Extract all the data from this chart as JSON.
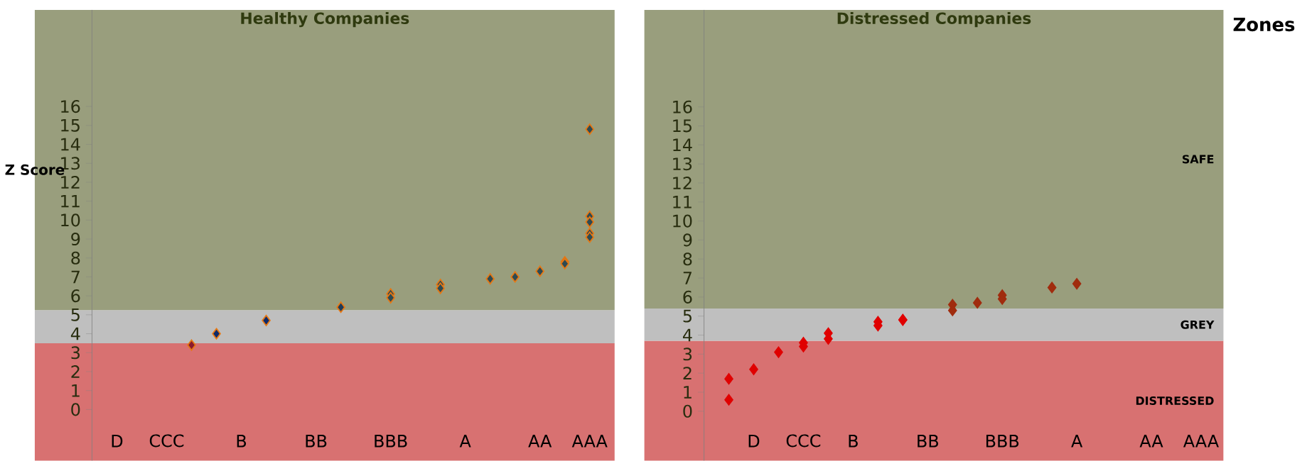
{
  "chart_data": [
    {
      "type": "scatter",
      "title": "Healthy Companies",
      "ylabel": "Z Score",
      "marker": "diamond",
      "categories": [
        null,
        "D",
        null,
        "CCC",
        null,
        null,
        "B",
        null,
        null,
        "BB",
        null,
        null,
        "BBB",
        null,
        null,
        "A",
        null,
        null,
        "AA",
        null,
        "AAA"
      ],
      "ylim": [
        -2.7,
        21.1
      ],
      "yticks": [
        0,
        1,
        2,
        3,
        4,
        5,
        6,
        7,
        8,
        9,
        10,
        11,
        12,
        13,
        14,
        15,
        16
      ],
      "bands": [
        {
          "axis": "y",
          "from": -2.7,
          "to": 3.5,
          "color": "#d87171"
        },
        {
          "axis": "y",
          "from": 3.5,
          "to": 5.25,
          "color": "#bfbfbf"
        },
        {
          "axis": "y",
          "from": 5.25,
          "to": 21.1,
          "color": "#999e7d"
        }
      ],
      "series": [
        {
          "values": [
            null,
            null,
            null,
            null,
            3.4,
            4.0,
            null,
            4.7,
            null,
            null,
            5.4,
            null,
            6.1,
            null,
            6.6,
            null,
            6.9,
            7.0,
            7.3,
            7.8,
            14.8
          ],
          "colors": [
            null,
            null,
            null,
            null,
            "#8b1a2e",
            "#0d2a6b",
            null,
            "#0d2a6b",
            null,
            null,
            "#1f3d5a",
            null,
            "#2e4a52",
            null,
            "#2e4a52",
            null,
            "#2e4a52",
            "#2e4a52",
            "#2e4a52",
            "#2e4a52",
            "#2e4a52"
          ]
        },
        {
          "color": "#2e4a52",
          "values": [
            null,
            null,
            null,
            null,
            null,
            null,
            null,
            null,
            null,
            null,
            null,
            null,
            5.9,
            null,
            6.4,
            null,
            null,
            null,
            null,
            7.7,
            10.2
          ]
        },
        {
          "color": "#2e4a52",
          "values": [
            null,
            null,
            null,
            null,
            null,
            null,
            null,
            null,
            null,
            null,
            null,
            null,
            null,
            null,
            null,
            null,
            null,
            null,
            null,
            null,
            9.9
          ]
        },
        {
          "color": "#2e4a52",
          "values": [
            null,
            null,
            null,
            null,
            null,
            null,
            null,
            null,
            null,
            null,
            null,
            null,
            null,
            null,
            null,
            null,
            null,
            null,
            null,
            null,
            9.3
          ]
        },
        {
          "color": "#2e4a52",
          "values": [
            null,
            null,
            null,
            null,
            null,
            null,
            null,
            null,
            null,
            null,
            null,
            null,
            null,
            null,
            null,
            null,
            null,
            null,
            null,
            null,
            9.1
          ]
        }
      ]
    },
    {
      "type": "scatter",
      "title": "Distressed Companies",
      "marker": "diamond",
      "categories": [
        null,
        null,
        "D",
        null,
        "CCC",
        null,
        "B",
        null,
        null,
        "BB",
        null,
        null,
        "BBB",
        null,
        null,
        "A",
        null,
        null,
        "AA",
        null,
        "AAA"
      ],
      "ylim": [
        -2.6,
        21.1
      ],
      "yticks": [
        0,
        1,
        2,
        3,
        4,
        5,
        6,
        7,
        8,
        9,
        10,
        11,
        12,
        13,
        14,
        15,
        16
      ],
      "bands": [
        {
          "axis": "y",
          "from": -2.6,
          "to": 3.7,
          "color": "#d87171",
          "label": "DISTRESSED"
        },
        {
          "axis": "y",
          "from": 3.7,
          "to": 5.4,
          "color": "#bfbfbf",
          "label": "GREY"
        },
        {
          "axis": "y",
          "from": 5.4,
          "to": 21.1,
          "color": "#999e7d",
          "label": "SAFE"
        }
      ],
      "annotations": [
        "Zones"
      ],
      "series": [
        {
          "values": [
            null,
            1.7,
            2.2,
            3.1,
            3.6,
            4.1,
            null,
            4.7,
            4.8,
            null,
            5.6,
            5.7,
            6.1,
            null,
            6.5,
            6.7,
            null,
            null,
            null,
            null,
            null
          ],
          "colors": [
            null,
            "#e00000",
            "#e00000",
            "#e00000",
            "#e00000",
            "#e00000",
            null,
            "#e00000",
            "#e00000",
            null,
            "#a02c0e",
            "#a02c0e",
            "#a02c0e",
            null,
            "#a02c0e",
            "#a02c0e",
            null,
            null,
            null,
            null,
            null
          ]
        },
        {
          "values": [
            null,
            0.6,
            null,
            null,
            3.4,
            3.8,
            null,
            4.5,
            4.8,
            null,
            5.3,
            null,
            5.9,
            null,
            null,
            null,
            null,
            null,
            null,
            null,
            null
          ],
          "colors": [
            null,
            "#e00000",
            null,
            null,
            "#e00000",
            "#e00000",
            null,
            "#e00000",
            "#e00000",
            null,
            "#a02c0e",
            null,
            "#a02c0e",
            null,
            null,
            null,
            null,
            null,
            null,
            null,
            null
          ]
        }
      ]
    }
  ]
}
